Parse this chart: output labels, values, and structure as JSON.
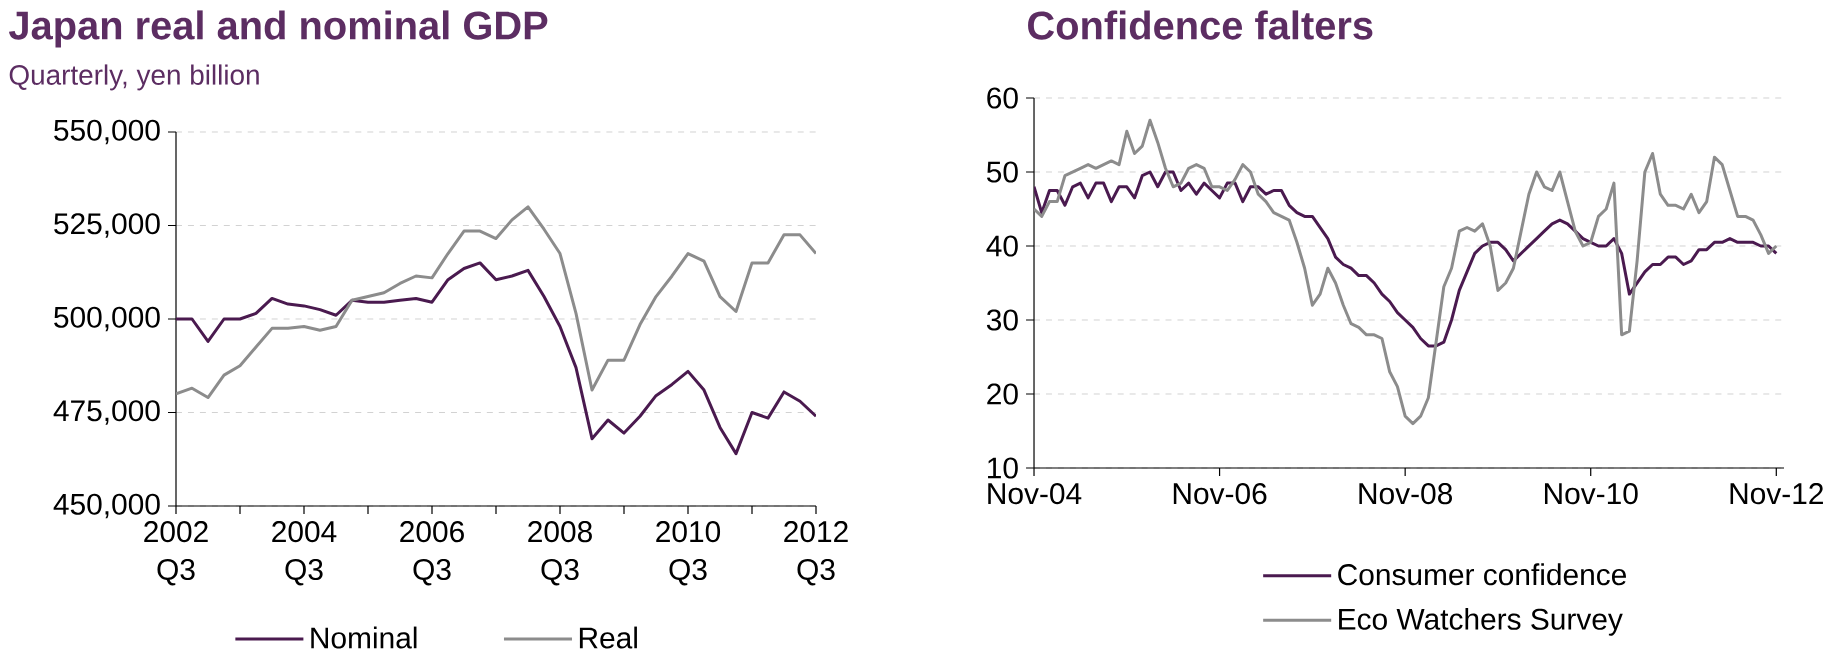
{
  "chart_data": [
    {
      "type": "line",
      "title": "Japan real and nominal GDP",
      "subtitle": "Quarterly, yen billion",
      "categories": [
        "2002 Q3",
        null,
        null,
        null,
        null,
        null,
        null,
        null,
        "2004 Q3",
        null,
        null,
        null,
        null,
        null,
        null,
        null,
        "2006 Q3",
        null,
        null,
        null,
        null,
        null,
        null,
        null,
        "2008 Q3",
        null,
        null,
        null,
        null,
        null,
        null,
        null,
        "2010 Q3",
        null,
        null,
        null,
        null,
        null,
        null,
        null,
        "2012 Q3"
      ],
      "series": [
        {
          "name": "Nominal",
          "color": "#4a1a4f",
          "values": [
            500000,
            500000,
            494000,
            500000,
            500000,
            501500,
            505500,
            504000,
            503500,
            502500,
            501000,
            505000,
            504500,
            504500,
            505000,
            505500,
            504500,
            510500,
            513500,
            515000,
            510500,
            511500,
            513000,
            506000,
            498000,
            487000,
            468000,
            473000,
            469500,
            474000,
            479500,
            482500,
            486000,
            481000,
            471000,
            464000,
            475000,
            473500,
            480500,
            478000,
            474000
          ]
        },
        {
          "name": "Real",
          "color": "#8c8c8c",
          "values": [
            480000,
            481500,
            479000,
            485000,
            487500,
            492500,
            497500,
            497500,
            498000,
            497000,
            498000,
            505000,
            506000,
            507000,
            509500,
            511500,
            511000,
            517500,
            523500,
            523500,
            521500,
            526500,
            530000,
            524000,
            517500,
            501500,
            481000,
            489000,
            489000,
            498500,
            506000,
            511500,
            517500,
            515500,
            506000,
            502000,
            515000,
            515000,
            522500,
            522500,
            517500
          ]
        }
      ],
      "ylim": [
        450000,
        550000
      ],
      "yticks": [
        {
          "value": 450000,
          "label": "450,000"
        },
        {
          "value": 475000,
          "label": "475,000"
        },
        {
          "value": 500000,
          "label": "500,000"
        },
        {
          "value": 525000,
          "label": "525,000"
        },
        {
          "value": 550000,
          "label": "550,000"
        }
      ],
      "grid": "y",
      "legend": "bottom"
    },
    {
      "type": "line",
      "title": "Confidence falters",
      "x": [
        "2004-11",
        "2004-12",
        "2005-01",
        "2005-02",
        "2005-03",
        "2005-04",
        "2005-05",
        "2005-06",
        "2005-07",
        "2005-08",
        "2005-09",
        "2005-10",
        "2005-11",
        "2005-12",
        "2006-01",
        "2006-02",
        "2006-03",
        "2006-04",
        "2006-05",
        "2006-06",
        "2006-07",
        "2006-08",
        "2006-09",
        "2006-10",
        "2006-11",
        "2006-12",
        "2007-01",
        "2007-02",
        "2007-03",
        "2007-04",
        "2007-05",
        "2007-06",
        "2007-07",
        "2007-08",
        "2007-09",
        "2007-10",
        "2007-11",
        "2007-12",
        "2008-01",
        "2008-02",
        "2008-03",
        "2008-04",
        "2008-05",
        "2008-06",
        "2008-07",
        "2008-08",
        "2008-09",
        "2008-10",
        "2008-11",
        "2008-12",
        "2009-01",
        "2009-02",
        "2009-03",
        "2009-04",
        "2009-05",
        "2009-06",
        "2009-07",
        "2009-08",
        "2009-09",
        "2009-10",
        "2009-11",
        "2009-12",
        "2010-01",
        "2010-02",
        "2010-03",
        "2010-04",
        "2010-05",
        "2010-06",
        "2010-07",
        "2010-08",
        "2010-09",
        "2010-10",
        "2010-11",
        "2010-12",
        "2011-01",
        "2011-02",
        "2011-03",
        "2011-04",
        "2011-05",
        "2011-06",
        "2011-07",
        "2011-08",
        "2011-09",
        "2011-10",
        "2011-11",
        "2011-12",
        "2012-01",
        "2012-02",
        "2012-03",
        "2012-04",
        "2012-05",
        "2012-06",
        "2012-07",
        "2012-08",
        "2012-09",
        "2012-10",
        "2012-11"
      ],
      "series": [
        {
          "name": "Consumer confidence",
          "color": "#4a1a4f",
          "values": [
            48,
            44.5,
            47.5,
            47.5,
            45.5,
            48,
            48.5,
            46.5,
            48.5,
            48.5,
            46,
            48,
            48,
            46.5,
            49.5,
            50,
            48,
            50,
            50,
            47.5,
            48.5,
            47,
            48.5,
            47.5,
            46.5,
            48.5,
            48.5,
            46,
            48,
            48,
            47,
            47.5,
            47.5,
            45.5,
            44.5,
            44,
            44,
            42.5,
            41,
            38.5,
            37.5,
            37,
            36,
            36,
            35,
            33.5,
            32.5,
            31,
            30,
            29,
            27.5,
            26.5,
            26.5,
            27,
            30,
            34,
            36.5,
            39,
            40,
            40.5,
            40.5,
            39.5,
            38,
            39,
            40,
            41,
            42,
            43,
            43.5,
            43,
            42,
            41,
            40.5,
            40,
            40,
            41,
            39,
            33.5,
            35,
            36.5,
            37.5,
            37.5,
            38.5,
            38.5,
            37.5,
            38,
            39.5,
            39.5,
            40.5,
            40.5,
            41,
            40.5,
            40.5,
            40.5,
            40,
            40,
            39
          ]
        },
        {
          "name": "Eco Watchers Survey",
          "color": "#8c8c8c",
          "values": [
            45,
            44,
            46,
            46,
            49.5,
            50,
            50.5,
            51,
            50.5,
            51,
            51.5,
            51,
            55.5,
            52.5,
            53.5,
            57,
            54,
            50.5,
            48,
            48.5,
            50.5,
            51,
            50.5,
            48,
            48,
            47.5,
            49,
            51,
            50,
            47,
            46,
            44.5,
            44,
            43.5,
            40.5,
            37,
            32,
            33.5,
            37,
            35,
            32,
            29.5,
            29,
            28,
            28,
            27.5,
            23,
            21,
            17,
            16,
            17,
            19.5,
            27,
            34.5,
            37,
            42,
            42.5,
            42,
            43,
            40,
            34,
            35,
            37,
            42,
            47,
            50,
            48,
            47.5,
            50,
            46,
            42,
            40,
            40.5,
            44,
            45,
            48.5,
            28,
            28.5,
            38,
            50,
            52.5,
            47,
            45.5,
            45.5,
            45,
            47,
            44.5,
            46,
            52,
            51,
            47.5,
            44,
            44,
            43.5,
            41.5,
            39,
            40
          ]
        }
      ],
      "xlim": [
        "2004-11",
        "2012-12"
      ],
      "xticks": [
        {
          "value": "2004-11",
          "label": "Nov-04"
        },
        {
          "value": "2006-11",
          "label": "Nov-06"
        },
        {
          "value": "2008-11",
          "label": "Nov-08"
        },
        {
          "value": "2010-11",
          "label": "Nov-10"
        },
        {
          "value": "2012-11",
          "label": "Nov-12"
        }
      ],
      "ylim": [
        10,
        60
      ],
      "yticks": [
        10,
        20,
        30,
        40,
        50,
        60
      ],
      "grid": "y",
      "legend": "bottom"
    }
  ]
}
